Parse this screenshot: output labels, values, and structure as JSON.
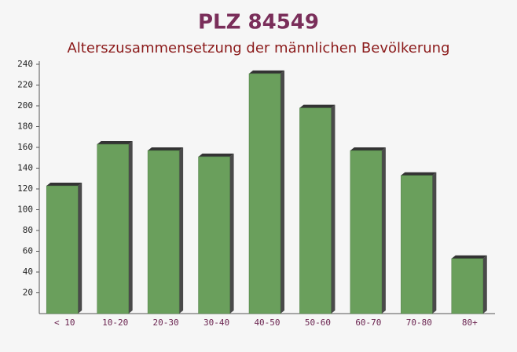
{
  "chart_data": {
    "type": "bar",
    "title": "PLZ 84549",
    "subtitle": "Alterszusammensetzung der männlichen Bevölkerung",
    "categories": [
      "< 10",
      "10-20",
      "20-30",
      "30-40",
      "40-50",
      "50-60",
      "60-70",
      "70-80",
      "80+"
    ],
    "values": [
      123,
      163,
      157,
      151,
      231,
      198,
      157,
      133,
      53
    ],
    "color": "#6a9f5c",
    "ylim": [
      0,
      240
    ],
    "yticks": [
      20,
      40,
      60,
      80,
      100,
      120,
      140,
      160,
      180,
      200,
      220,
      240
    ],
    "grid": false
  }
}
